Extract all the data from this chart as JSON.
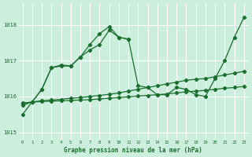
{
  "title": "Graphe pression niveau de la mer (hPa)",
  "background_color": "#cceedd",
  "grid_color": "#aaddcc",
  "line_color": "#1a6e2e",
  "xlim": [
    -0.5,
    23.5
  ],
  "ylim": [
    1014.8,
    1018.6
  ],
  "yticks": [
    1015,
    1016,
    1017,
    1018
  ],
  "xticks": [
    0,
    1,
    2,
    3,
    4,
    5,
    6,
    7,
    8,
    9,
    10,
    11,
    12,
    13,
    14,
    15,
    16,
    17,
    18,
    19,
    20,
    21,
    22,
    23
  ],
  "line1_x": [
    0,
    1,
    2,
    3,
    4,
    5,
    6,
    7,
    8,
    9,
    10,
    11,
    12,
    13,
    14,
    15,
    16,
    17,
    18,
    19,
    20,
    21,
    22,
    23
  ],
  "line1_y": [
    1015.75,
    1015.85,
    1016.2,
    1016.8,
    1016.85,
    1016.85,
    1017.1,
    1017.3,
    1017.45,
    1017.85,
    1017.65,
    1017.6,
    1016.3,
    1016.25,
    1016.05,
    1016.05,
    1016.25,
    1016.2,
    1016.05,
    1016.0,
    1016.5,
    1017.0,
    1017.65,
    1018.2
  ],
  "line2_x": [
    0,
    1,
    2,
    3,
    4,
    5,
    6,
    7,
    8,
    9,
    10,
    11
  ],
  "line2_y": [
    1015.5,
    1015.85,
    1016.2,
    1016.8,
    1016.88,
    1016.85,
    1017.1,
    1017.45,
    1017.75,
    1017.95,
    1017.65,
    1017.6
  ],
  "line3_x": [
    0,
    1,
    2,
    3,
    4,
    5,
    6,
    7,
    8,
    9,
    10,
    11,
    12,
    13,
    14,
    15,
    16,
    17,
    18,
    19,
    20,
    21,
    22,
    23
  ],
  "line3_y": [
    1015.8,
    1015.85,
    1015.88,
    1015.9,
    1015.92,
    1015.95,
    1015.97,
    1016.0,
    1016.03,
    1016.06,
    1016.1,
    1016.15,
    1016.2,
    1016.25,
    1016.3,
    1016.35,
    1016.4,
    1016.45,
    1016.48,
    1016.5,
    1016.55,
    1016.6,
    1016.65,
    1016.7
  ],
  "line4_x": [
    0,
    1,
    2,
    3,
    4,
    5,
    6,
    7,
    8,
    9,
    10,
    11,
    12,
    13,
    14,
    15,
    16,
    17,
    18,
    19,
    20,
    21,
    22,
    23
  ],
  "line4_y": [
    1015.82,
    1015.84,
    1015.86,
    1015.87,
    1015.88,
    1015.89,
    1015.9,
    1015.91,
    1015.93,
    1015.95,
    1015.97,
    1015.99,
    1016.01,
    1016.03,
    1016.05,
    1016.07,
    1016.1,
    1016.13,
    1016.15,
    1016.17,
    1016.2,
    1016.23,
    1016.25,
    1016.28
  ]
}
